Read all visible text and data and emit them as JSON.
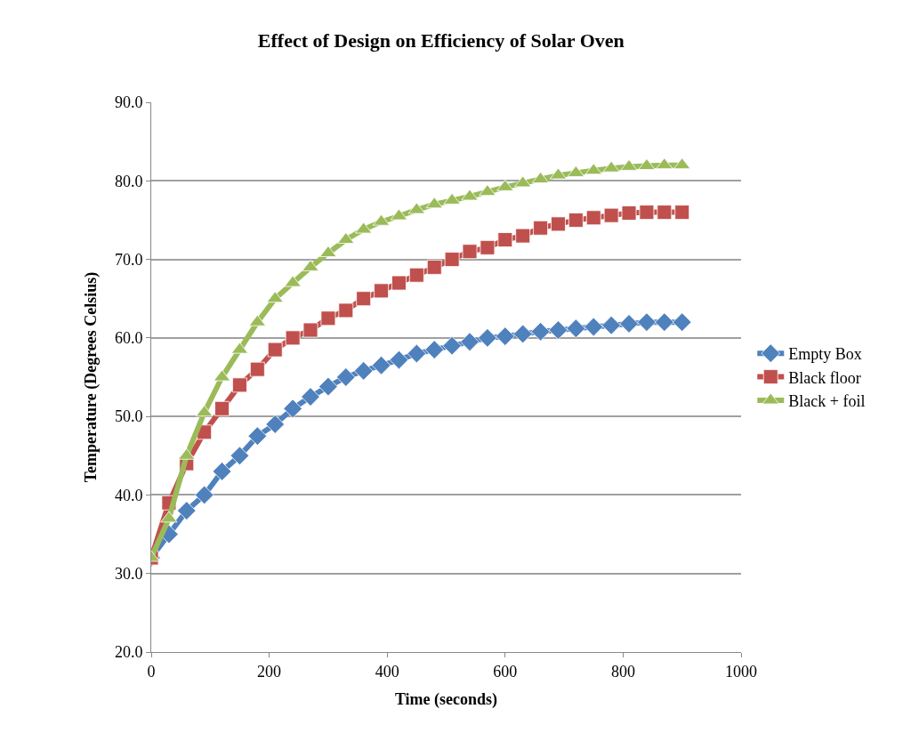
{
  "chart_data": {
    "type": "line",
    "title": "Effect of Design on Efficiency of Solar Oven",
    "xlabel": "Time (seconds)",
    "ylabel": "Temperature (Degrees Celsius)",
    "x": [
      0,
      30,
      60,
      90,
      120,
      150,
      180,
      210,
      240,
      270,
      300,
      330,
      360,
      390,
      420,
      450,
      480,
      510,
      540,
      570,
      600,
      630,
      660,
      690,
      720,
      750,
      780,
      810,
      840,
      870,
      900
    ],
    "series": [
      {
        "name": "Empty Box",
        "color": "#4f81bd",
        "marker": "diamond",
        "values": [
          32,
          35,
          38,
          40,
          43,
          45,
          47.5,
          49,
          51,
          52.5,
          53.8,
          55,
          55.8,
          56.5,
          57.2,
          58,
          58.5,
          59,
          59.5,
          60,
          60.2,
          60.5,
          60.8,
          61,
          61.2,
          61.4,
          61.6,
          61.8,
          62,
          62,
          62
        ]
      },
      {
        "name": "Black floor",
        "color": "#c0504d",
        "marker": "square",
        "values": [
          32,
          39,
          44,
          48,
          51,
          54,
          56,
          58.5,
          60,
          61,
          62.5,
          63.5,
          65,
          66,
          67,
          68,
          69,
          70,
          71,
          71.5,
          72.5,
          73,
          74,
          74.5,
          75,
          75.3,
          75.6,
          75.9,
          76,
          76,
          76
        ]
      },
      {
        "name": "Black + foil",
        "color": "#9bbb59",
        "marker": "triangle",
        "values": [
          32,
          37,
          45,
          50.5,
          55,
          58.5,
          62,
          65,
          67,
          69,
          70.8,
          72.5,
          73.8,
          74.8,
          75.5,
          76.3,
          77,
          77.5,
          78,
          78.6,
          79.2,
          79.7,
          80.2,
          80.7,
          81,
          81.3,
          81.6,
          81.8,
          81.9,
          82,
          82
        ]
      }
    ],
    "xlim": [
      0,
      1000
    ],
    "xticks": [
      0,
      200,
      400,
      600,
      800,
      1000
    ],
    "ylim": [
      20,
      90
    ],
    "yticks": [
      {
        "value": 20,
        "label": "20.0"
      },
      {
        "value": 30,
        "label": "30.0"
      },
      {
        "value": 40,
        "label": "40.0"
      },
      {
        "value": 50,
        "label": "50.0"
      },
      {
        "value": 60,
        "label": "60.0"
      },
      {
        "value": 70,
        "label": "70.0"
      },
      {
        "value": 80,
        "label": "80.0"
      },
      {
        "value": 90,
        "label": "90.0"
      }
    ],
    "grid": "y",
    "legend": "right"
  }
}
